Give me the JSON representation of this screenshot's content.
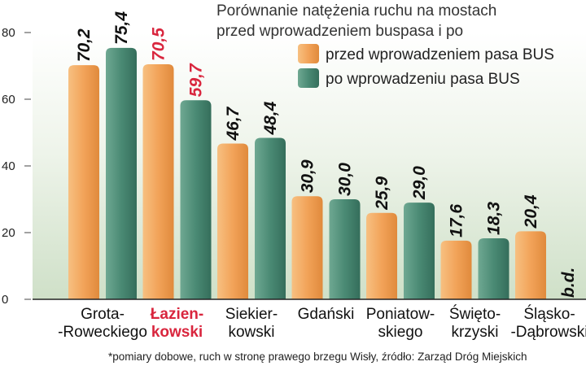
{
  "chart_data": {
    "type": "bar",
    "title_lines": [
      "Porównanie natężenia ruchu na mostach",
      "przed wprowadzeniem buspasa i po"
    ],
    "ylim": [
      0,
      80
    ],
    "yticks": [
      "0",
      "20",
      "40",
      "60",
      "80"
    ],
    "highlight_index": 1,
    "categories": [
      [
        "Grota-",
        "-Roweckiego"
      ],
      [
        "Łazien-",
        "kowski"
      ],
      [
        "Siekier-",
        "kowski"
      ],
      [
        "Gdański"
      ],
      [
        "Poniatow-",
        "skiego"
      ],
      [
        "Święto-",
        "krzyski"
      ],
      [
        "Śląsko-",
        "-Dąbrowski"
      ]
    ],
    "series": [
      {
        "name": "przed wprowadzeniem pasa BUS",
        "color": "#f2a359",
        "values": [
          70.2,
          70.5,
          46.7,
          30.9,
          25.9,
          17.6,
          20.4
        ],
        "labels": [
          "70,2",
          "70,5",
          "46,7",
          "30,9",
          "25,9",
          "17,6",
          "20,4"
        ]
      },
      {
        "name": "po wprowadzeniu pasa BUS",
        "color": "#4a8a74",
        "values": [
          75.4,
          59.7,
          48.4,
          30.0,
          29.0,
          18.3,
          null
        ],
        "labels": [
          "75,4",
          "59,7",
          "48,4",
          "30,0",
          "29,0",
          "18,3",
          "b.d."
        ]
      }
    ],
    "footnote": "*pomiary dobowe, ruch w stronę prawego brzegu Wisły, źródło: Zarząd Dróg Miejskich",
    "grid": false,
    "legend": "top-right"
  }
}
